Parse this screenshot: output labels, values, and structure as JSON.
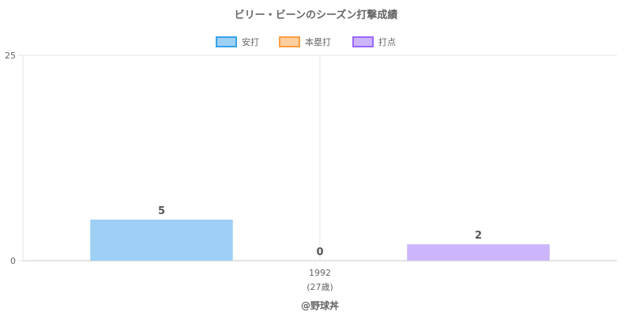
{
  "chart_data": {
    "type": "bar",
    "title": "ビリー・ビーンのシーズン打撃成績",
    "categories": [
      "1992"
    ],
    "category_sublabels": [
      "(27歳)"
    ],
    "series": [
      {
        "name": "安打",
        "values": [
          5
        ],
        "fill": "#9ecff5",
        "border": "#36a2eb"
      },
      {
        "name": "本塁打",
        "values": [
          0
        ],
        "fill": "#ffcf9f",
        "border": "#ff9f40"
      },
      {
        "name": "打点",
        "values": [
          2
        ],
        "fill": "#cdb5fb",
        "border": "#9966ff"
      }
    ],
    "ylim": [
      0,
      25
    ],
    "yticks": [
      "0",
      "25"
    ],
    "legend_position": "top",
    "grid": true,
    "data_labels": true
  },
  "credit": "@野球丼"
}
